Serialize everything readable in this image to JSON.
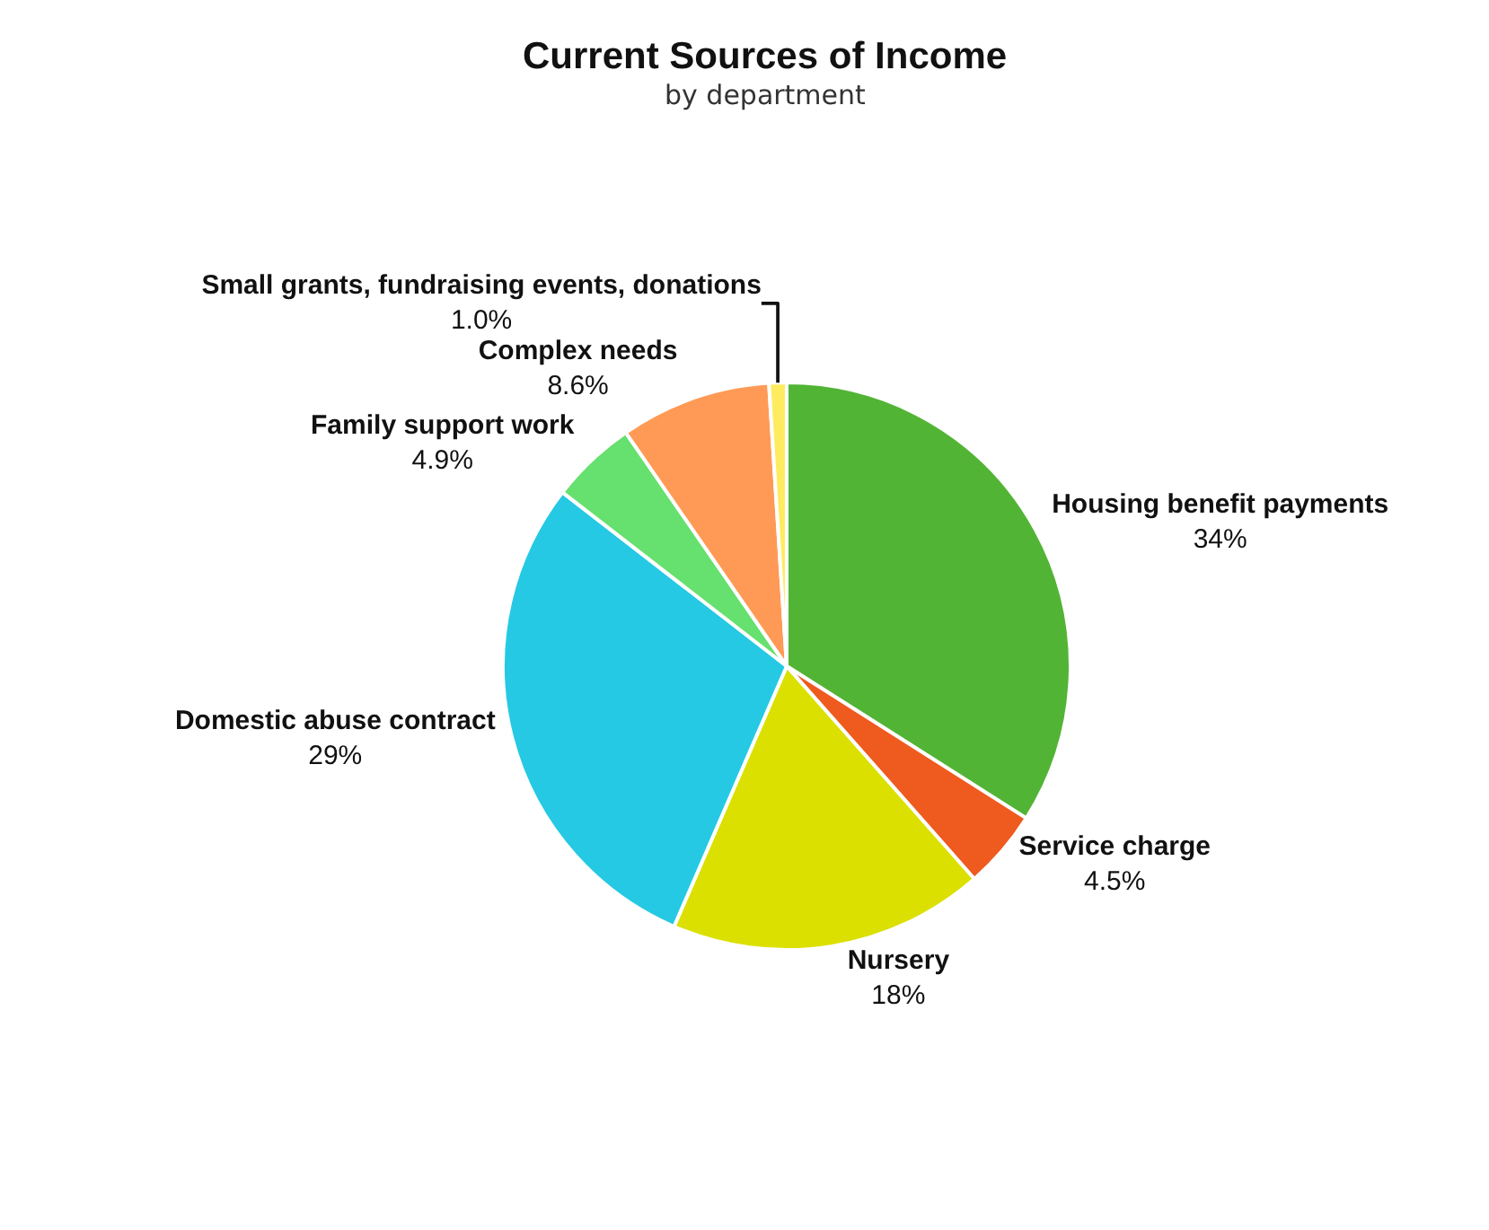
{
  "chart_data": {
    "type": "pie",
    "title": "Current Sources of Income",
    "subtitle": "by department",
    "categories": [
      "Housing benefit payments",
      "Service charge",
      "Nursery",
      "Domestic abuse contract",
      "Family support work",
      "Complex needs",
      "Small grants, fundraising events, donations"
    ],
    "values": [
      34,
      4.5,
      18,
      29,
      4.9,
      8.6,
      1.0
    ],
    "value_labels": [
      "34%",
      "4.5%",
      "18%",
      "29%",
      "4.9%",
      "8.6%",
      "1.0%"
    ],
    "colors": [
      "#52b435",
      "#ef5a1f",
      "#dbe000",
      "#25c9e3",
      "#66e06f",
      "#ff9a56",
      "#ffeb5f"
    ],
    "legend": false
  }
}
